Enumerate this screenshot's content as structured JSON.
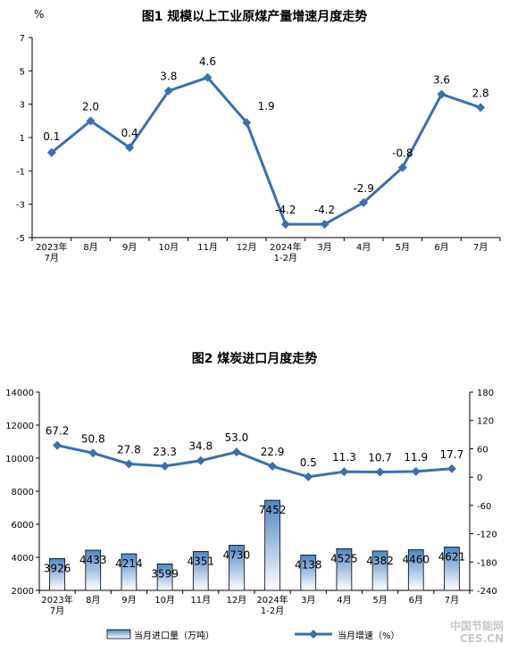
{
  "chart_data": [
    {
      "type": "line",
      "title": "图1  规模以上工业原煤产量增速月度走势",
      "yunit": "%",
      "categories": [
        "2023年\n7月",
        "8月",
        "9月",
        "10月",
        "11月",
        "12月",
        "2024年\n1-2月",
        "3月",
        "4月",
        "5月",
        "6月",
        "7月"
      ],
      "series": [
        {
          "values": [
            0.1,
            2.0,
            0.4,
            3.8,
            4.6,
            1.9,
            -4.2,
            -4.2,
            -2.9,
            -0.8,
            3.6,
            2.8
          ],
          "labels": [
            "0.1",
            "2.0",
            "0.4",
            "3.8",
            "4.6",
            "1.9",
            "-4.2",
            "-4.2",
            "-2.9",
            "-0.8",
            "3.6",
            "2.8"
          ]
        }
      ],
      "ylim": [
        -5,
        7
      ],
      "yticks": [
        -5,
        -3,
        -1,
        1,
        3,
        5,
        7
      ],
      "color": "#3a6fb0"
    },
    {
      "type": "bar+line",
      "title": "图2  煤炭进口月度走势",
      "categories": [
        "2023年\n7月",
        "8月",
        "9月",
        "10月",
        "11月",
        "12月",
        "2024年\n1-2月",
        "3月",
        "4月",
        "5月",
        "6月",
        "7月"
      ],
      "bars": {
        "name": "当月进口量（万吨）",
        "values": [
          3926,
          4433,
          4214,
          3599,
          4351,
          4730,
          7452,
          4138,
          4525,
          4382,
          4460,
          4621
        ]
      },
      "line": {
        "name": "当月增速（%）",
        "values": [
          67.2,
          50.8,
          27.8,
          23.3,
          34.8,
          53.0,
          22.9,
          0.5,
          11.3,
          10.7,
          11.9,
          17.7
        ],
        "labels": [
          "67.2",
          "50.8",
          "27.8",
          "23.3",
          "34.8",
          "53.0",
          "22.9",
          "0.5",
          "11.3",
          "10.7",
          "11.9",
          "17.7"
        ]
      },
      "ylim_left": [
        2000,
        14000
      ],
      "yticks_left": [
        2000,
        4000,
        6000,
        8000,
        10000,
        12000,
        14000
      ],
      "ylim_right": [
        -240,
        180
      ],
      "yticks_right": [
        -240,
        -180,
        -120,
        -60,
        0,
        60,
        120,
        180
      ],
      "bar_fill_top": "#4f86c6",
      "bar_fill_bottom": "#ffffff",
      "line_color": "#3a6fb0"
    }
  ],
  "watermark": {
    "line1": "中国节能网",
    "line2": "CES.CN"
  }
}
